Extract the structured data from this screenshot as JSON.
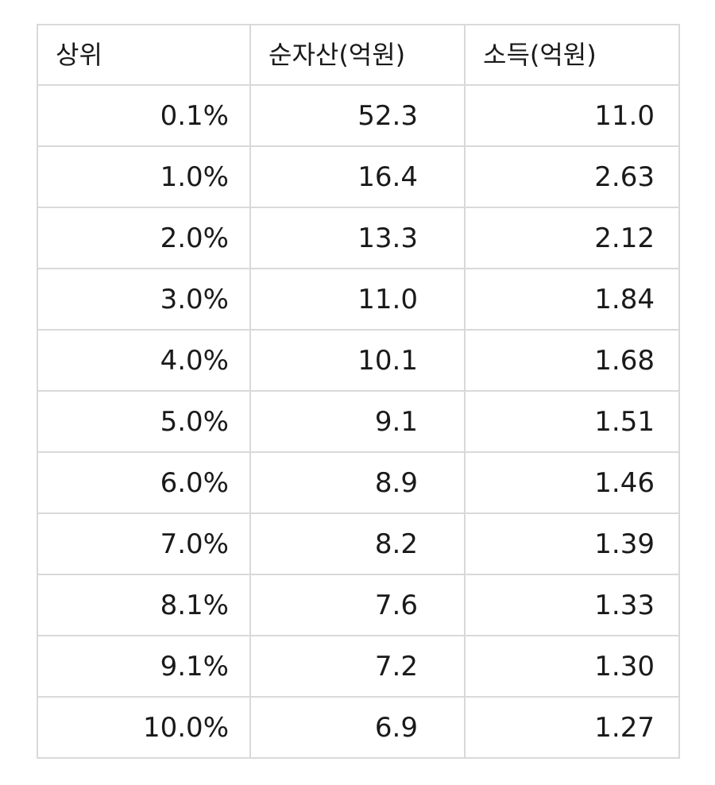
{
  "table": {
    "headers": [
      "상위",
      "순자산(억원)",
      "소득(억원)"
    ],
    "rows": [
      {
        "rank": "0.1%",
        "net_assets": "52.3",
        "income": "11.0"
      },
      {
        "rank": "1.0%",
        "net_assets": "16.4",
        "income": "2.63"
      },
      {
        "rank": "2.0%",
        "net_assets": "13.3",
        "income": "2.12"
      },
      {
        "rank": "3.0%",
        "net_assets": "11.0",
        "income": "1.84"
      },
      {
        "rank": "4.0%",
        "net_assets": "10.1",
        "income": "1.68"
      },
      {
        "rank": "5.0%",
        "net_assets": "9.1",
        "income": "1.51"
      },
      {
        "rank": "6.0%",
        "net_assets": "8.9",
        "income": "1.46"
      },
      {
        "rank": "7.0%",
        "net_assets": "8.2",
        "income": "1.39"
      },
      {
        "rank": "8.1%",
        "net_assets": "7.6",
        "income": "1.33"
      },
      {
        "rank": "9.1%",
        "net_assets": "7.2",
        "income": "1.30"
      },
      {
        "rank": "10.0%",
        "net_assets": "6.9",
        "income": "1.27"
      }
    ]
  }
}
